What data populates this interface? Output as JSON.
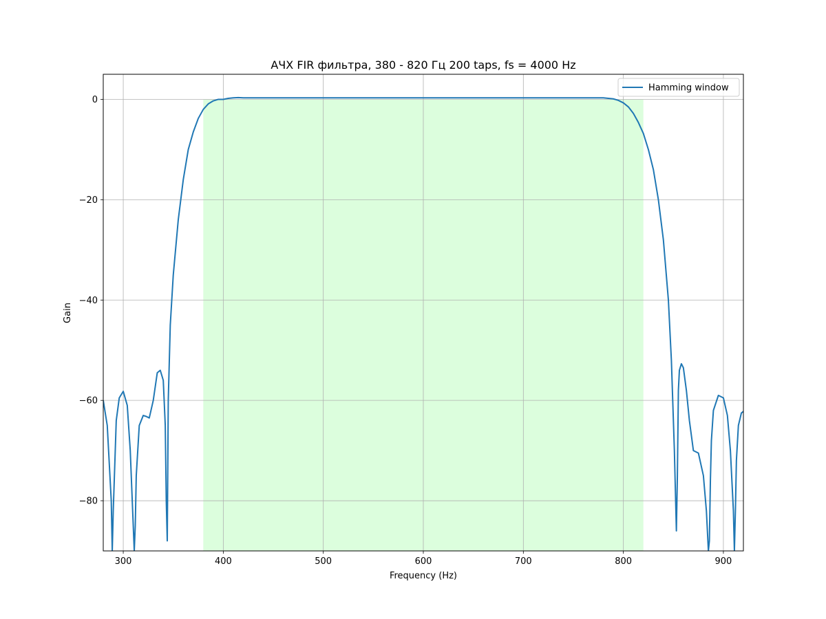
{
  "chart_data": {
    "type": "line",
    "title": "АЧХ FIR фильтра, 380 - 820  Гц 200 taps, fs = 4000 Hz",
    "xlabel": "Frequency (Hz)",
    "ylabel": "Gain",
    "xlim": [
      280,
      920
    ],
    "ylim": [
      -90,
      5
    ],
    "xticks": [
      300,
      400,
      500,
      600,
      700,
      800,
      900
    ],
    "yticks": [
      0,
      -20,
      -40,
      -60,
      -80
    ],
    "xtick_labels": [
      "300",
      "400",
      "500",
      "600",
      "700",
      "800",
      "900"
    ],
    "ytick_labels": [
      "0",
      "−20",
      "−40",
      "−60",
      "−80"
    ],
    "grid": true,
    "legend_position": "top-right",
    "passband": {
      "from": 380,
      "to": 820,
      "color": "#dcfedd"
    },
    "series": [
      {
        "name": "Hamming window",
        "color": "#1f77b4",
        "x": [
          280,
          284,
          288,
          289,
          290,
          293,
          296,
          300,
          304,
          307,
          310,
          311,
          312,
          313,
          316,
          320,
          323,
          326,
          330,
          334,
          337,
          340,
          342,
          343,
          344,
          345,
          347,
          350,
          355,
          360,
          365,
          370,
          375,
          380,
          385,
          390,
          395,
          400,
          405,
          410,
          415,
          420,
          450,
          500,
          550,
          600,
          650,
          700,
          750,
          780,
          790,
          795,
          800,
          805,
          810,
          815,
          820,
          825,
          830,
          835,
          840,
          845,
          848,
          851,
          853,
          854,
          855,
          856,
          858,
          860,
          863,
          866,
          870,
          875,
          880,
          883,
          885,
          886,
          887,
          888,
          890,
          895,
          900,
          904,
          907,
          910,
          911,
          912,
          913,
          915,
          918,
          920
        ],
        "y": [
          -60,
          -65,
          -80,
          -90,
          -82,
          -64,
          -59.5,
          -58.2,
          -61,
          -70,
          -85,
          -90,
          -85,
          -75,
          -65,
          -63,
          -63.2,
          -63.5,
          -60,
          -54.5,
          -54,
          -56,
          -65,
          -80,
          -88,
          -60,
          -45,
          -35,
          -24,
          -16,
          -10,
          -6.5,
          -3.8,
          -2,
          -0.9,
          -0.3,
          0,
          0,
          0.2,
          0.3,
          0.35,
          0.3,
          0.3,
          0.3,
          0.3,
          0.3,
          0.3,
          0.3,
          0.3,
          0.3,
          0.1,
          -0.2,
          -0.7,
          -1.5,
          -2.8,
          -4.6,
          -6.8,
          -10,
          -14,
          -20,
          -28,
          -40,
          -52,
          -70,
          -86,
          -75,
          -58,
          -54,
          -52.7,
          -53.5,
          -58,
          -64,
          -70,
          -70.5,
          -75,
          -82,
          -90,
          -88,
          -76,
          -68,
          -62,
          -59,
          -59.5,
          -63,
          -70,
          -82,
          -90,
          -82,
          -72,
          -65,
          -62.5,
          -62.2
        ]
      }
    ]
  }
}
